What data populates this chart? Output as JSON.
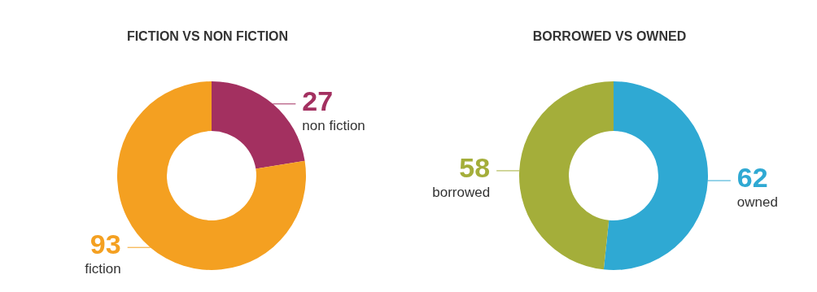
{
  "chart_data": [
    {
      "type": "donut",
      "title": "FICTION VS NON FICTION",
      "categories": [
        "non fiction",
        "fiction"
      ],
      "values": [
        27,
        93
      ],
      "colors": [
        "#a33060",
        "#f4a021"
      ],
      "data_labels": true,
      "legend": false
    },
    {
      "type": "donut",
      "title": "BORROWED VS OWNED",
      "categories": [
        "owned",
        "borrowed"
      ],
      "values": [
        62,
        58
      ],
      "colors": [
        "#2fa9d3",
        "#a4ae3a"
      ],
      "data_labels": true,
      "legend": false
    }
  ]
}
